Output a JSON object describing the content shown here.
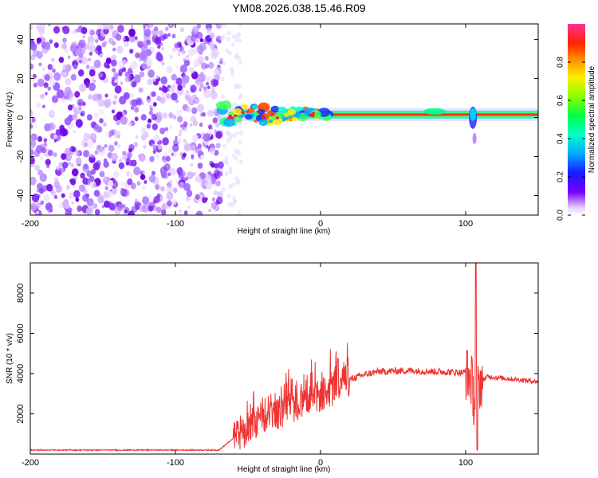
{
  "title": "YM08.2026.038.15.46.R09",
  "chart_data": [
    {
      "type": "heatmap",
      "name": "spectrogram",
      "xlabel": "Height of straight line (km)",
      "ylabel": "Frequency (Hz)",
      "xlim": [
        -200,
        150
      ],
      "ylim": [
        -50,
        48
      ],
      "xticks": [
        -200,
        -100,
        0,
        100
      ],
      "yticks": [
        -40,
        -20,
        0,
        20,
        40
      ],
      "colorbar": {
        "label": "Normalized spectral amplitude",
        "range": [
          0.0,
          1.0
        ],
        "ticks": [
          0.0,
          0.2,
          0.4,
          0.6,
          0.8
        ],
        "tick_labels": [
          "0.0",
          "0.2",
          "0.4",
          "0.6",
          "0.8"
        ]
      },
      "description_values": {
        "noise_region_x": [
          -200,
          -68
        ],
        "signal_band_center_hz": 1.5,
        "signal_start_x": -70
      }
    },
    {
      "type": "line",
      "name": "snr",
      "xlabel": "Height of straight line (km)",
      "ylabel": "SNR (10 * v/v)",
      "xlim": [
        -200,
        150
      ],
      "ylim": [
        0,
        9500
      ],
      "xticks": [
        -200,
        -100,
        0,
        100
      ],
      "yticks": [
        2000,
        4000,
        6000,
        8000
      ],
      "color": "#ee3333",
      "envelope": {
        "x": [
          -200,
          -70,
          -58,
          -40,
          -20,
          0,
          10,
          20,
          30,
          40,
          60,
          80,
          100,
          104,
          106,
          108,
          110,
          115,
          150
        ],
        "y": [
          200,
          200,
          900,
          1600,
          2300,
          2900,
          3200,
          3700,
          3950,
          4100,
          4150,
          4100,
          4050,
          3700,
          2500,
          3000,
          3600,
          3850,
          3600
        ]
      },
      "spikes": [
        {
          "x": 12,
          "y": 4750
        },
        {
          "x": 107,
          "y": 9500
        },
        {
          "x": 108,
          "y": 200
        }
      ]
    }
  ]
}
